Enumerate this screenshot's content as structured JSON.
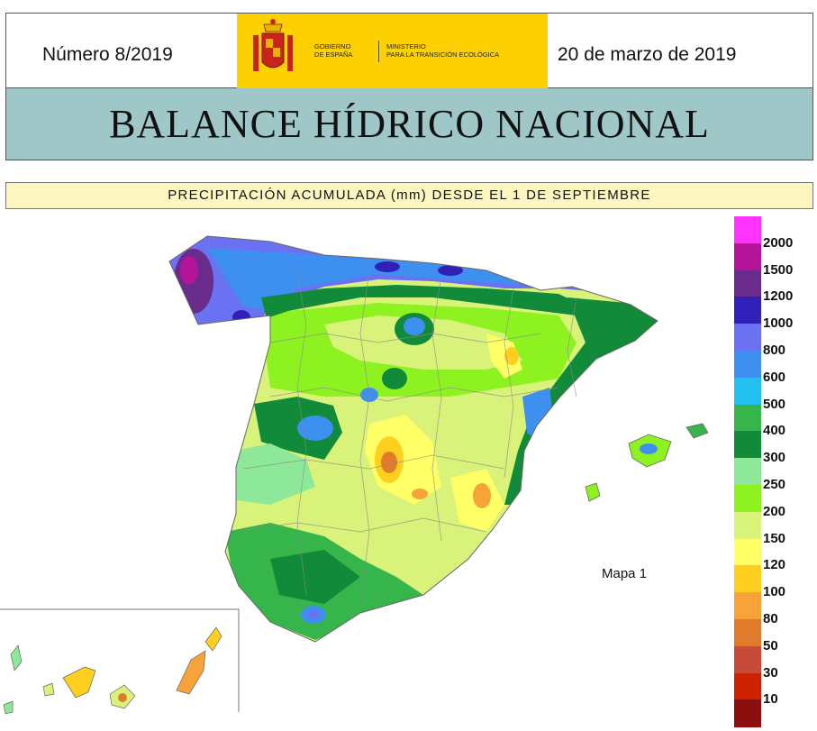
{
  "header": {
    "issue_number": "Número 8/2019",
    "date": "20 de marzo de 2019",
    "logo": {
      "gov_line1": "GOBIERNO",
      "gov_line2": "DE ESPAÑA",
      "min_line1": "MINISTERIO",
      "min_line2": "PARA LA TRANSICIÓN ECOLÓGICA",
      "bg_color": "#fdd100"
    }
  },
  "title": "BALANCE HÍDRICO NACIONAL",
  "subtitle": "PRECIPITACIÓN ACUMULADA (mm) DESDE EL 1 DE SEPTIEMBRE",
  "map_label": "Mapa 1",
  "legend": {
    "items": [
      {
        "value": "2000",
        "color": "#ff33ff"
      },
      {
        "value": "1500",
        "color": "#b4149a"
      },
      {
        "value": "1200",
        "color": "#6a2c8c"
      },
      {
        "value": "1000",
        "color": "#3020b8"
      },
      {
        "value": "800",
        "color": "#6b72f2"
      },
      {
        "value": "600",
        "color": "#3d90f0"
      },
      {
        "value": "500",
        "color": "#21c0ee"
      },
      {
        "value": "400",
        "color": "#36b54a"
      },
      {
        "value": "300",
        "color": "#118b3a"
      },
      {
        "value": "250",
        "color": "#8ee89a"
      },
      {
        "value": "200",
        "color": "#8df21f"
      },
      {
        "value": "150",
        "color": "#d8f27a"
      },
      {
        "value": "120",
        "color": "#ffff66"
      },
      {
        "value": "100",
        "color": "#ffcf1f"
      },
      {
        "value": "80",
        "color": "#f8a23a"
      },
      {
        "value": "50",
        "color": "#e07b2c"
      },
      {
        "value": "30",
        "color": "#c84a3a"
      },
      {
        "value": "10",
        "color": "#cc2200"
      },
      {
        "value": "",
        "color": "#8b0f0f"
      }
    ]
  }
}
